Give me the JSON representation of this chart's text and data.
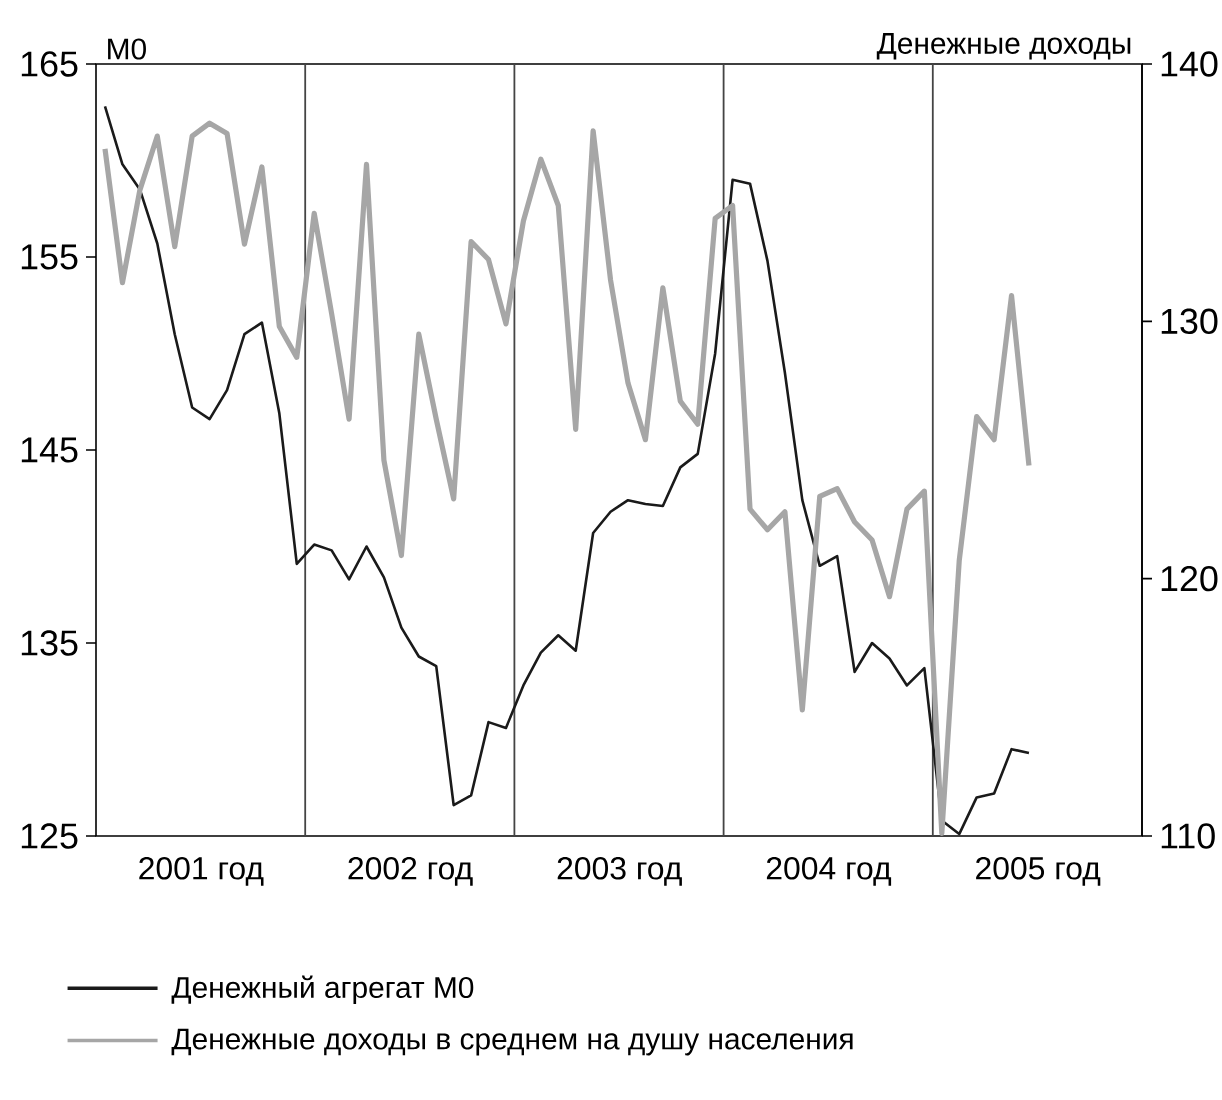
{
  "chart_data": {
    "type": "line",
    "xlim": [
      "2000-12-16",
      "2005-12-16"
    ],
    "xticks": [
      {
        "value": "2001-06-16",
        "label": "2001 год"
      },
      {
        "value": "2002-06-16",
        "label": "2002 год"
      },
      {
        "value": "2003-06-16",
        "label": "2003 год"
      },
      {
        "value": "2004-06-16",
        "label": "2004 год"
      },
      {
        "value": "2005-06-16",
        "label": "2005 год"
      }
    ],
    "ylim": [
      125,
      165
    ],
    "yticks": [
      125,
      135,
      145,
      155,
      165
    ],
    "y2lim": [
      110,
      140
    ],
    "y2ticks": [
      110,
      120,
      130,
      140
    ],
    "ylabel": "М0",
    "y2label": "Денежные доходы",
    "ref_lines": [
      {
        "axis": "x",
        "value": "2001-12-16",
        "color": "#444444"
      },
      {
        "axis": "x",
        "value": "2002-12-16",
        "color": "#444444"
      },
      {
        "axis": "x",
        "value": "2003-12-16",
        "color": "#444444"
      },
      {
        "axis": "x",
        "value": "2004-12-16",
        "color": "#444444"
      }
    ],
    "legend": "bottom",
    "x": [
      "2001-01",
      "2001-02",
      "2001-03",
      "2001-04",
      "2001-05",
      "2001-06",
      "2001-07",
      "2001-08",
      "2001-09",
      "2001-10",
      "2001-11",
      "2001-12",
      "2002-01",
      "2002-02",
      "2002-03",
      "2002-04",
      "2002-05",
      "2002-06",
      "2002-07",
      "2002-08",
      "2002-09",
      "2002-10",
      "2002-11",
      "2002-12",
      "2003-01",
      "2003-02",
      "2003-03",
      "2003-04",
      "2003-05",
      "2003-06",
      "2003-07",
      "2003-08",
      "2003-09",
      "2003-10",
      "2003-11",
      "2003-12",
      "2004-01",
      "2004-02",
      "2004-03",
      "2004-04",
      "2004-05",
      "2004-06",
      "2004-07",
      "2004-08",
      "2004-09",
      "2004-10",
      "2004-11",
      "2004-12",
      "2005-01",
      "2005-02",
      "2005-03",
      "2005-04",
      "2005-05",
      "2005-06"
    ],
    "series": [
      {
        "name": "Денежный агрегат М0",
        "color": "#1a1a1a",
        "values": [
          162.8,
          159.8,
          158.5,
          155.7,
          151.0,
          147.2,
          146.6,
          148.1,
          151.0,
          151.6,
          146.9,
          139.1,
          140.1,
          139.8,
          138.3,
          140.0,
          138.4,
          135.8,
          134.3,
          133.8,
          126.6,
          127.1,
          130.9,
          130.6,
          132.8,
          134.5,
          135.4,
          134.6,
          140.7,
          141.8,
          142.4,
          142.2,
          142.1,
          144.1,
          144.8,
          150.0,
          159.0,
          158.8,
          154.8,
          149.0,
          142.4,
          139.0,
          139.5,
          133.5,
          135.0,
          134.2,
          132.8,
          133.7,
          125.8,
          125.1,
          127.0,
          127.2,
          129.5,
          129.3
        ]
      },
      {
        "name": "Денежные доходы в среднем на душу населения",
        "color": "#a6a6a6",
        "axis": "y2",
        "values": [
          136.7,
          131.5,
          135.1,
          137.2,
          132.9,
          137.2,
          137.7,
          137.3,
          133.0,
          136.0,
          129.8,
          128.6,
          134.2,
          130.3,
          126.2,
          136.1,
          124.6,
          120.9,
          129.5,
          126.2,
          123.1,
          133.1,
          132.4,
          129.9,
          133.9,
          136.3,
          134.5,
          125.8,
          137.4,
          131.6,
          127.6,
          125.4,
          131.3,
          126.9,
          126.0,
          134.0,
          134.5,
          122.7,
          121.9,
          122.6,
          114.9,
          123.2,
          123.5,
          122.2,
          121.5,
          119.3,
          122.7,
          123.4,
          110.1,
          120.7,
          126.3,
          125.4,
          131.0,
          124.4
        ]
      }
    ]
  }
}
